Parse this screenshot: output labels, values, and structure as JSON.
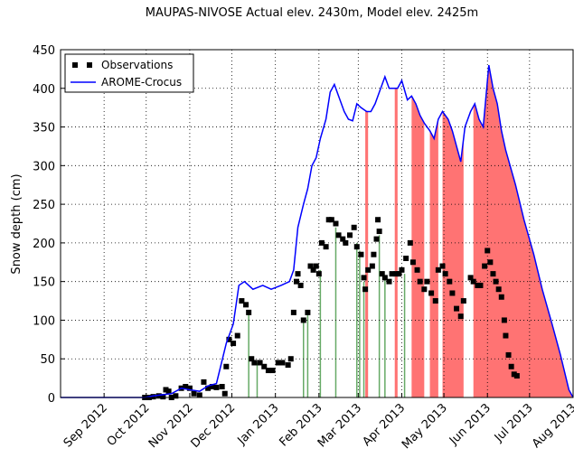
{
  "chart_data": {
    "type": "line",
    "title": "MAUPAS-NIVOSE  Actual elev. 2430m, Model elev. 2425m",
    "y_label": "Snow depth (cm)",
    "xlim": [
      0,
      365
    ],
    "xticks": [
      {
        "value": 31,
        "label": "Sep 2012"
      },
      {
        "value": 61,
        "label": "Oct 2012"
      },
      {
        "value": 92,
        "label": "Nov 2012"
      },
      {
        "value": 122,
        "label": "Dec 2012"
      },
      {
        "value": 153,
        "label": "Jan 2013"
      },
      {
        "value": 184,
        "label": "Feb 2013"
      },
      {
        "value": 212,
        "label": "Mar 2013"
      },
      {
        "value": 243,
        "label": "Apr 2013"
      },
      {
        "value": 273,
        "label": "May 2013"
      },
      {
        "value": 304,
        "label": "Jun 2013"
      },
      {
        "value": 334,
        "label": "Jul 2013"
      },
      {
        "value": 365,
        "label": "Aug 2013"
      }
    ],
    "ylim": [
      0,
      450
    ],
    "yticks": [
      0,
      50,
      100,
      150,
      200,
      250,
      300,
      350,
      400,
      450
    ],
    "grid": true,
    "legend": "upper left",
    "bands": [
      {
        "x0": 217,
        "x1": 219,
        "color": "#ff4444"
      },
      {
        "x0": 238,
        "x1": 240,
        "color": "#ff4444"
      },
      {
        "x0": 250,
        "x1": 259,
        "color": "#ff4444"
      },
      {
        "x0": 263,
        "x1": 269,
        "color": "#ff4444"
      },
      {
        "x0": 272,
        "x1": 287,
        "color": "#ff4444"
      },
      {
        "x0": 294,
        "x1": 364,
        "color": "#ff4444"
      }
    ],
    "stems": [
      {
        "x": 134,
        "top": 110,
        "color": "#66aa66"
      },
      {
        "x": 140,
        "top": 45,
        "color": "#66aa66"
      },
      {
        "x": 173,
        "top": 100,
        "color": "#66aa66"
      },
      {
        "x": 176,
        "top": 110,
        "color": "#66aa66"
      },
      {
        "x": 185,
        "top": 165,
        "color": "#66aa66"
      },
      {
        "x": 196,
        "top": 220,
        "color": "#66aa66"
      },
      {
        "x": 211,
        "top": 200,
        "color": "#66aa66"
      },
      {
        "x": 213,
        "top": 190,
        "color": "#66aa66"
      },
      {
        "x": 216,
        "top": 150,
        "color": "#66aa66"
      },
      {
        "x": 227,
        "top": 210,
        "color": "#66aa66"
      },
      {
        "x": 231,
        "top": 155,
        "color": "#66aa66"
      },
      {
        "x": 245,
        "top": 160,
        "color": "#66aa66"
      }
    ],
    "series": [
      {
        "name": "Observations",
        "color": "#000000",
        "marker": "square",
        "x": [
          60,
          63,
          66,
          70,
          73,
          75,
          77,
          79,
          82,
          86,
          89,
          92,
          95,
          99,
          102,
          105,
          108,
          111,
          115,
          117,
          118,
          120,
          123,
          126,
          129,
          132,
          134,
          136,
          138,
          142,
          145,
          148,
          151,
          155,
          158,
          162,
          164,
          166,
          168,
          169,
          171,
          173,
          176,
          178,
          180,
          182,
          184,
          186,
          189,
          191,
          193,
          196,
          198,
          201,
          203,
          206,
          209,
          211,
          214,
          216,
          217,
          219,
          222,
          223,
          225,
          226,
          227,
          229,
          231,
          234,
          236,
          239,
          241,
          243,
          246,
          249,
          251,
          254,
          256,
          259,
          261,
          264,
          267,
          269,
          272,
          274,
          277,
          279,
          282,
          285,
          287,
          292,
          294,
          297,
          299,
          302,
          304,
          306,
          308,
          310,
          312,
          314,
          316,
          317,
          319,
          321,
          323,
          325
        ],
        "values": [
          0,
          0,
          1,
          2,
          1,
          10,
          8,
          0,
          2,
          12,
          14,
          12,
          5,
          3,
          20,
          12,
          14,
          13,
          14,
          5,
          40,
          75,
          70,
          80,
          125,
          120,
          110,
          50,
          45,
          45,
          40,
          35,
          35,
          45,
          45,
          42,
          50,
          110,
          150,
          160,
          145,
          100,
          110,
          170,
          165,
          170,
          160,
          200,
          195,
          230,
          230,
          225,
          210,
          205,
          200,
          210,
          220,
          195,
          185,
          155,
          140,
          165,
          170,
          185,
          205,
          230,
          215,
          160,
          155,
          150,
          160,
          160,
          160,
          165,
          180,
          200,
          175,
          165,
          150,
          140,
          150,
          135,
          125,
          165,
          170,
          160,
          150,
          135,
          115,
          105,
          125,
          155,
          150,
          145,
          145,
          170,
          190,
          175,
          160,
          150,
          140,
          130,
          100,
          80,
          55,
          40,
          30,
          28
        ]
      },
      {
        "name": "AROME-Crocus",
        "color": "#0000ff",
        "marker": "line",
        "x": [
          0,
          60,
          66,
          79,
          86,
          92,
          99,
          105,
          111,
          118,
          123,
          127,
          131,
          137,
          144,
          150,
          157,
          163,
          166,
          169,
          173,
          176,
          179,
          182,
          185,
          189,
          192,
          195,
          198,
          202,
          205,
          208,
          211,
          214,
          218,
          221,
          224,
          227,
          231,
          234,
          237,
          240,
          243,
          247,
          250,
          253,
          256,
          259,
          263,
          266,
          269,
          272,
          276,
          279,
          282,
          285,
          288,
          292,
          295,
          298,
          301,
          305,
          308,
          311,
          314,
          317,
          324,
          330,
          337,
          343,
          350,
          356,
          362,
          365
        ],
        "values": [
          0,
          0,
          2,
          5,
          12,
          10,
          8,
          15,
          18,
          70,
          95,
          145,
          150,
          140,
          145,
          140,
          145,
          150,
          165,
          220,
          250,
          270,
          300,
          310,
          335,
          360,
          395,
          405,
          390,
          370,
          360,
          358,
          380,
          375,
          370,
          370,
          380,
          395,
          415,
          400,
          400,
          400,
          410,
          385,
          390,
          380,
          365,
          355,
          345,
          335,
          360,
          370,
          360,
          345,
          325,
          305,
          350,
          370,
          380,
          360,
          350,
          430,
          400,
          380,
          345,
          320,
          275,
          230,
          185,
          140,
          95,
          55,
          10,
          0
        ]
      }
    ]
  }
}
